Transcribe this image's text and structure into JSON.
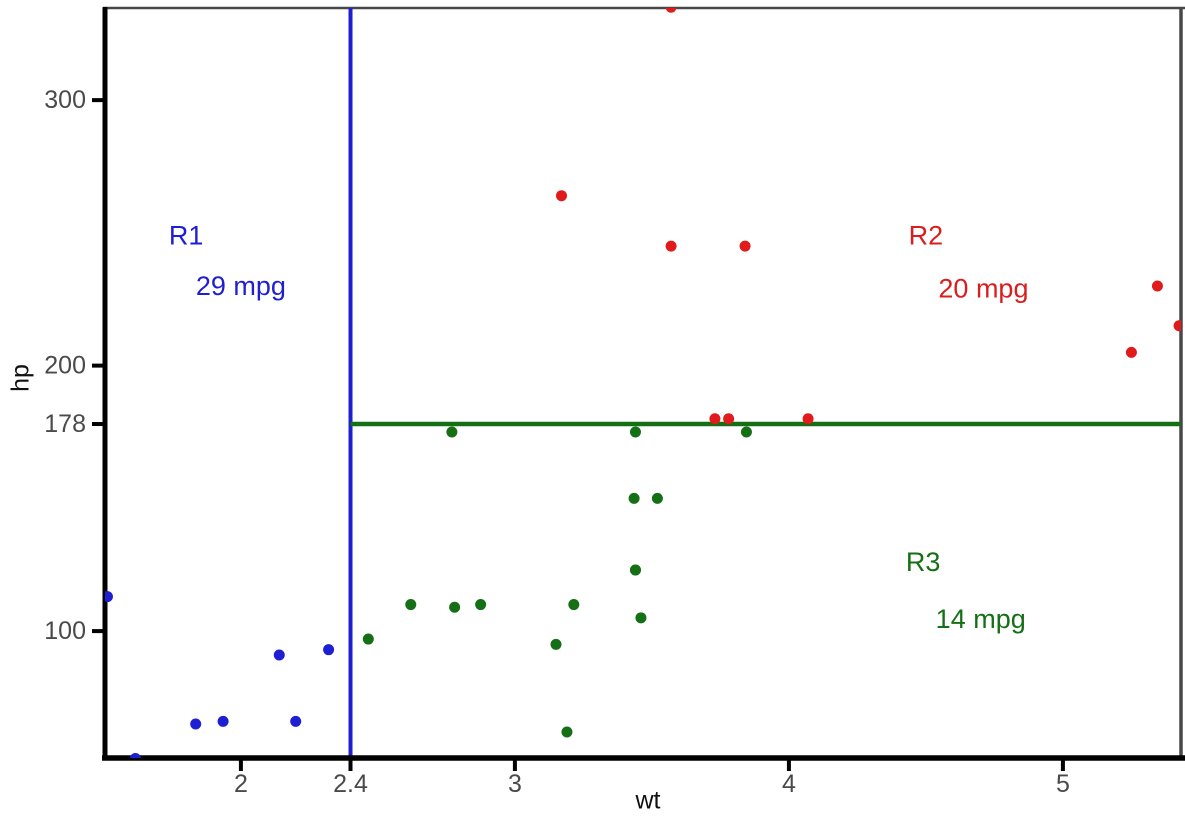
{
  "chart_data": {
    "type": "scatter",
    "title": "",
    "xlabel": "wt",
    "ylabel": "hp",
    "grid": false,
    "legend": "none",
    "x_axis": {
      "ticks": [
        {
          "value": 2,
          "label": "2"
        },
        {
          "value": 2.4,
          "label": "2.4"
        },
        {
          "value": 3,
          "label": "3"
        },
        {
          "value": 4,
          "label": "4"
        },
        {
          "value": 5,
          "label": "5"
        }
      ],
      "range_shown": [
        1.504,
        5.431
      ]
    },
    "y_axis": {
      "ticks": [
        {
          "value": 100,
          "label": "100"
        },
        {
          "value": 178,
          "label": "178"
        },
        {
          "value": 200,
          "label": "200"
        },
        {
          "value": 300,
          "label": "300"
        }
      ],
      "range_shown": [
        52.2,
        334.7
      ]
    },
    "reference_lines": [
      {
        "id": "wt-split",
        "orientation": "vertical",
        "x": 2.4,
        "y_start": 52.2,
        "y_end": 334.7,
        "color": "#1e1ed2"
      },
      {
        "id": "hp-split",
        "orientation": "horizontal",
        "y": 178,
        "x_start": 2.4,
        "x_end": 5.431,
        "color": "#156f15"
      }
    ],
    "annotations": [
      {
        "text": "R1",
        "x": 1.8,
        "y": 249.0,
        "color": "#1e1ed2"
      },
      {
        "text": "29 mpg",
        "x": 2.0,
        "y": 230.0,
        "color": "#1e1ed2"
      },
      {
        "text": "R2",
        "x": 4.5,
        "y": 249.0,
        "color": "#d81e1e"
      },
      {
        "text": "20 mpg",
        "x": 4.71,
        "y": 229.0,
        "color": "#d81e1e"
      },
      {
        "text": "R3",
        "x": 4.49,
        "y": 126.0,
        "color": "#156f15"
      },
      {
        "text": "14 mpg",
        "x": 4.7,
        "y": 104.5,
        "color": "#156f15"
      }
    ],
    "series": [
      {
        "name": "R1",
        "region_label": "29 mpg",
        "color": "#1e1ed2",
        "points": [
          {
            "wt": 2.32,
            "hp": 93
          },
          {
            "wt": 2.2,
            "hp": 66
          },
          {
            "wt": 1.615,
            "hp": 52
          },
          {
            "wt": 1.835,
            "hp": 65
          },
          {
            "wt": 1.935,
            "hp": 66
          },
          {
            "wt": 2.14,
            "hp": 91
          },
          {
            "wt": 1.513,
            "hp": 113
          }
        ]
      },
      {
        "name": "R2",
        "region_label": "20 mpg",
        "color": "#e01b1b",
        "points": [
          {
            "wt": 3.57,
            "hp": 245
          },
          {
            "wt": 4.07,
            "hp": 180
          },
          {
            "wt": 3.73,
            "hp": 180
          },
          {
            "wt": 3.78,
            "hp": 180
          },
          {
            "wt": 5.25,
            "hp": 205
          },
          {
            "wt": 5.424,
            "hp": 215
          },
          {
            "wt": 5.345,
            "hp": 230
          },
          {
            "wt": 3.84,
            "hp": 245
          },
          {
            "wt": 3.17,
            "hp": 264
          },
          {
            "wt": 3.57,
            "hp": 335
          }
        ]
      },
      {
        "name": "R3",
        "region_label": "14 mpg",
        "color": "#156f15",
        "points": [
          {
            "wt": 2.62,
            "hp": 110
          },
          {
            "wt": 2.875,
            "hp": 110
          },
          {
            "wt": 3.215,
            "hp": 110
          },
          {
            "wt": 3.44,
            "hp": 175
          },
          {
            "wt": 3.46,
            "hp": 105
          },
          {
            "wt": 3.19,
            "hp": 62
          },
          {
            "wt": 3.15,
            "hp": 95
          },
          {
            "wt": 3.44,
            "hp": 123
          },
          {
            "wt": 3.44,
            "hp": 123
          },
          {
            "wt": 3.52,
            "hp": 150
          },
          {
            "wt": 3.435,
            "hp": 150
          },
          {
            "wt": 3.845,
            "hp": 175
          },
          {
            "wt": 2.465,
            "hp": 97
          },
          {
            "wt": 2.77,
            "hp": 175
          },
          {
            "wt": 2.78,
            "hp": 109
          }
        ]
      }
    ],
    "style": {
      "point_radius": 5.5,
      "tick_label_color": "#4a4a4a",
      "axis_line_color": "#000000",
      "border_color": "#484848",
      "background": "#ffffff",
      "tick_font_size": 25,
      "annotation_font_size": 27
    }
  }
}
